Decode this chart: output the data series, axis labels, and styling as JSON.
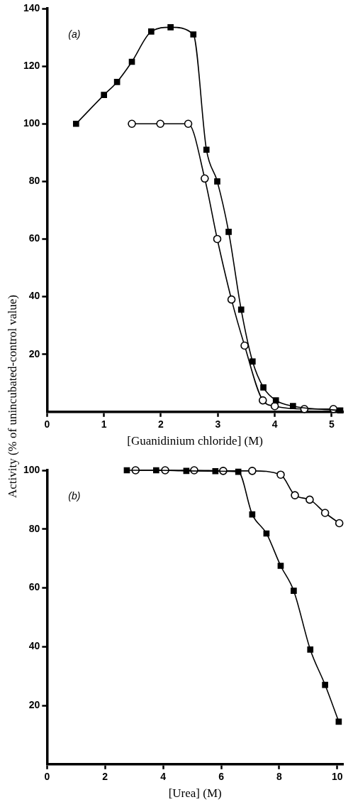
{
  "chart_data": [
    {
      "type": "line",
      "xlabel": "[Guanidinium chloride] (M)",
      "ylabel": "Activity (% of unincubated-control value)",
      "annotations": [
        "(a)"
      ],
      "xlim": [
        0,
        5.2
      ],
      "ylim": [
        0,
        140
      ],
      "xticks": [
        0,
        1,
        2,
        3,
        4,
        5
      ],
      "yticks": [
        20,
        40,
        60,
        80,
        100,
        120,
        140
      ],
      "grid": false,
      "legend": false,
      "line_style": "solid",
      "series": [
        {
          "color": "#000000",
          "marker": "square",
          "x": [
            0.51,
            1.0,
            1.23,
            1.49,
            1.83,
            2.17,
            2.57,
            2.8,
            2.99,
            3.19,
            3.41,
            3.61,
            3.8,
            4.02,
            4.32,
            5.15
          ],
          "values": [
            100,
            110,
            114.5,
            121.5,
            132,
            133.5,
            131,
            91,
            80,
            62.5,
            35.5,
            17.5,
            8.5,
            4,
            2,
            0.5
          ]
        },
        {
          "color": "#000000",
          "marker": "circle",
          "x": [
            1.49,
            1.99,
            2.48,
            2.77,
            2.99,
            3.24,
            3.47,
            3.79,
            4.0,
            4.52,
            5.03
          ],
          "values": [
            100,
            100,
            100,
            81,
            60,
            39,
            23,
            4,
            2,
            1,
            1
          ]
        }
      ]
    },
    {
      "type": "line",
      "xlabel": "[Urea] (M)",
      "annotations": [
        "(b)"
      ],
      "xlim": [
        0,
        10.2
      ],
      "ylim": [
        0,
        100
      ],
      "xticks": [
        0,
        2,
        4,
        6,
        8,
        10
      ],
      "yticks": [
        20,
        40,
        60,
        80,
        100
      ],
      "grid": false,
      "legend": false,
      "line_style": "solid",
      "series": [
        {
          "color": "#000000",
          "marker": "square",
          "x": [
            2.75,
            3.76,
            4.8,
            5.8,
            6.59,
            7.07,
            7.56,
            8.05,
            8.5,
            9.07,
            9.58,
            10.05
          ],
          "values": [
            100,
            100,
            99.8,
            99.7,
            99.5,
            85,
            78.5,
            67.5,
            59,
            39,
            27,
            14.5
          ]
        },
        {
          "color": "#000000",
          "marker": "circle",
          "x": [
            3.05,
            4.07,
            5.07,
            6.07,
            7.07,
            8.05,
            8.54,
            9.05,
            9.58,
            10.07
          ],
          "values": [
            100,
            100,
            100,
            99.8,
            99.8,
            98.5,
            91.5,
            90,
            85.5,
            82
          ]
        }
      ]
    }
  ]
}
